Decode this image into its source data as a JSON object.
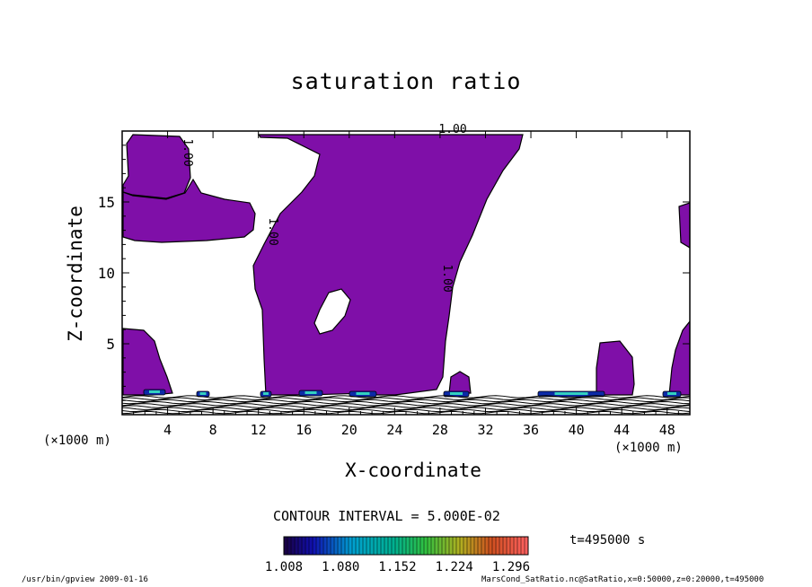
{
  "chart_data": {
    "type": "contour",
    "title": "saturation ratio",
    "xlabel": "X-coordinate",
    "ylabel": "Z-coordinate",
    "x_unit": "(×1000 m)",
    "xlim": [
      0,
      50
    ],
    "ylim": [
      0,
      20
    ],
    "x_ticks": [
      "4",
      "8",
      "12",
      "16",
      "20",
      "24",
      "28",
      "32",
      "36",
      "40",
      "44",
      "48"
    ],
    "y_ticks": [
      "5",
      "10",
      "15"
    ],
    "contour_labels": [
      "1.00",
      "1.00",
      "1.00",
      "1.00"
    ],
    "contour_interval": "CONTOUR INTERVAL = 5.000E-02",
    "colorbar": {
      "ticks": [
        "1.008",
        "1.080",
        "1.152",
        "1.224",
        "1.296"
      ],
      "min": 1.008,
      "max": 1.296
    },
    "fill_color": "#7f0fa8",
    "time_label": "t=495000 s"
  },
  "footer": {
    "left": "/usr/bin/gpview  2009-01-16",
    "right": "MarsCond_SatRatio.nc@SatRatio,x=0:50000,z=0:20000,t=495000"
  }
}
